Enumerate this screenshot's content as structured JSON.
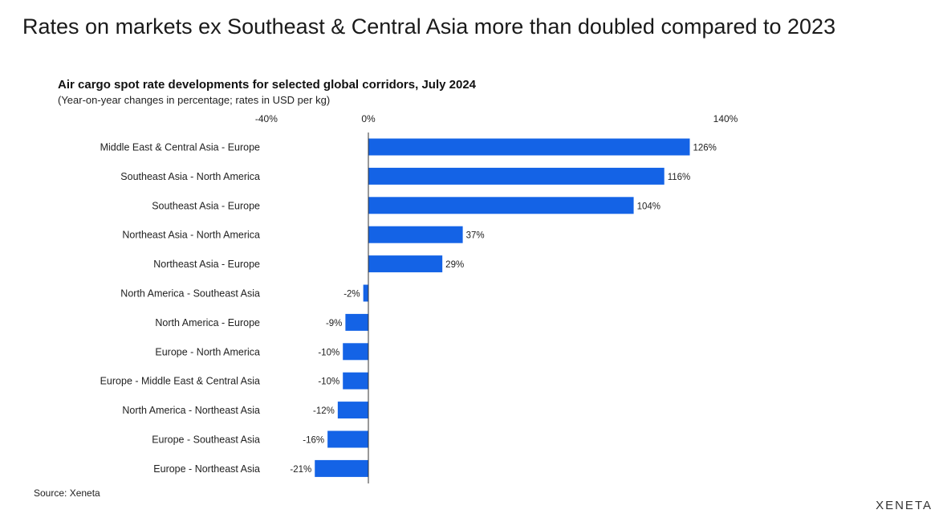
{
  "slide": {
    "title": "Rates on markets ex Southeast & Central Asia more than doubled compared to 2023"
  },
  "chart_data": {
    "type": "bar",
    "orientation": "horizontal",
    "title": "Air cargo spot rate developments for selected global corridors, July 2024",
    "subtitle": "(Year-on-year changes in percentage; rates in USD per kg)",
    "xlim": [
      -40,
      140
    ],
    "axis_ticks": [
      "-40%",
      "0%",
      "140%"
    ],
    "tick_values": [
      -40,
      0,
      140
    ],
    "grid": false,
    "bar_color": "#1463e6",
    "categories": [
      "Middle East & Central Asia - Europe",
      "Southeast Asia - North America",
      "Southeast Asia - Europe",
      "Northeast Asia - North America",
      "Northeast Asia - Europe",
      "North America - Southeast Asia",
      "North America - Europe",
      "Europe - North America",
      "Europe - Middle East & Central Asia",
      "North America - Northeast Asia",
      "Europe - Southeast Asia",
      "Europe - Northeast Asia"
    ],
    "values": [
      126,
      116,
      104,
      37,
      29,
      -2,
      -9,
      -10,
      -10,
      -12,
      -16,
      -21
    ],
    "value_labels": [
      "126%",
      "116%",
      "104%",
      "37%",
      "29%",
      "-2%",
      "-9%",
      "-10%",
      "-10%",
      "-12%",
      "-16%",
      "-21%"
    ]
  },
  "footer": {
    "source": "Source: Xeneta",
    "logo": "XENETA"
  }
}
